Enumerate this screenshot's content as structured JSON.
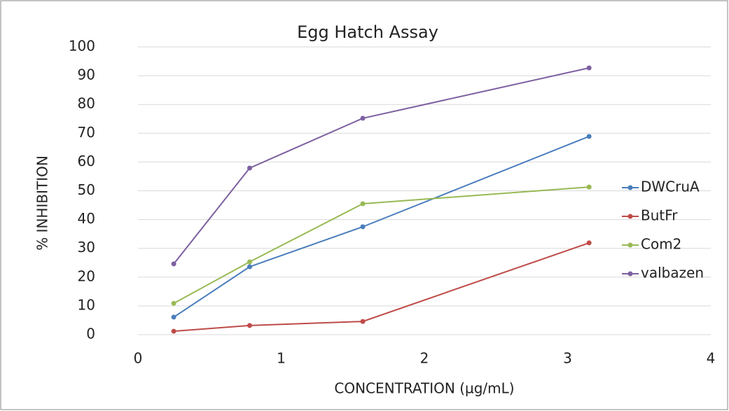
{
  "chart_data": {
    "type": "line",
    "title": "Egg Hatch Assay",
    "x_label": "CONCENTRATION (µg/mL)",
    "y_label": "% INHIBITION",
    "x": [
      0.25,
      0.78,
      1.57,
      3.15
    ],
    "series": [
      {
        "name": "DWCruA",
        "color": "#4a7ebb",
        "values": [
          6.1,
          23.6,
          37.5,
          68.9
        ]
      },
      {
        "name": "ButFr",
        "color": "#be4b48",
        "values": [
          1.2,
          3.2,
          4.6,
          31.9
        ]
      },
      {
        "name": "Com2",
        "color": "#98b954",
        "values": [
          10.9,
          25.3,
          45.5,
          51.3
        ]
      },
      {
        "name": "valbazen",
        "color": "#7d60a0",
        "values": [
          24.6,
          57.9,
          75.2,
          92.7
        ]
      }
    ],
    "xlim": [
      0,
      4
    ],
    "xticks": [
      0,
      1,
      2,
      3,
      4
    ],
    "ylim": [
      0,
      100
    ],
    "yticks": [
      0,
      10,
      20,
      30,
      40,
      50,
      60,
      70,
      80,
      90,
      100
    ],
    "grid": true,
    "legend": "right"
  }
}
